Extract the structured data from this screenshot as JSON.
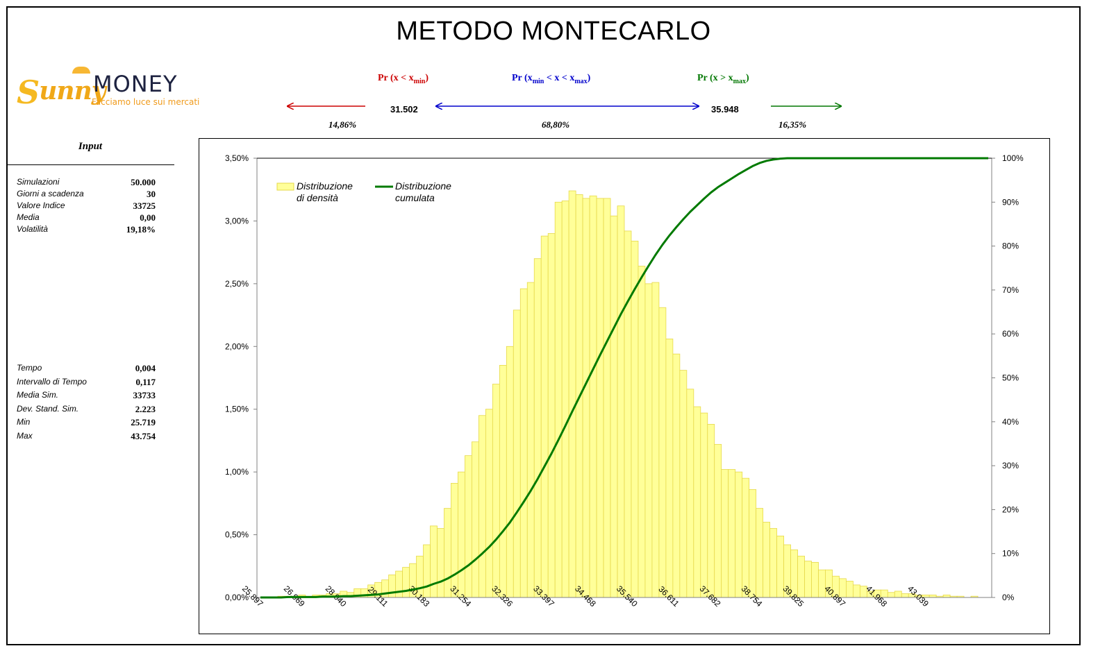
{
  "title": "METODO MONTECARLO",
  "logo": {
    "brand_word": "unny",
    "brand_initial": "S",
    "brand_name": "MONEY",
    "tagline": "Facciamo luce sui mercati"
  },
  "probabilities": {
    "left": {
      "label_prefix": "Pr (x < x",
      "label_sub": "min",
      "label_suffix": ")",
      "percent": "14,86%",
      "color": "#cc0000"
    },
    "middle": {
      "label_prefix": "Pr (x",
      "label_sub1": "min",
      "label_mid": " < x < x",
      "label_sub2": "max",
      "label_suffix": ")",
      "percent": "68,80%",
      "color": "#0000cc"
    },
    "right": {
      "label_prefix": "Pr (x > x",
      "label_sub": "max",
      "label_suffix": ")",
      "percent": "16,35%",
      "color": "#007700"
    },
    "xmin": "31.502",
    "xmax": "35.948"
  },
  "input": {
    "title": "Input",
    "params": [
      {
        "label": "Simulazioni",
        "value": "50.000"
      },
      {
        "label": "Giorni a scadenza",
        "value": "30"
      },
      {
        "label": "Valore Indice",
        "value": "33725"
      },
      {
        "label": "Media",
        "value": "0,00"
      },
      {
        "label": "Volatilità",
        "value": "19,18%"
      }
    ],
    "results": [
      {
        "label": "Tempo",
        "value": "0,004"
      },
      {
        "label": "Intervallo di Tempo",
        "value": "0,117"
      },
      {
        "label": "Media Sim.",
        "value": "33733"
      },
      {
        "label": "Dev. Stand. Sim.",
        "value": "2.223"
      },
      {
        "label": "Min",
        "value": "25.719"
      },
      {
        "label": "Max",
        "value": "43.754"
      }
    ]
  },
  "chart_data": {
    "type": "bar",
    "legend_position": "top-left",
    "grid": false,
    "ylim_left": [
      0,
      3.5
    ],
    "ylim_right": [
      0,
      100
    ],
    "y_left_ticks": [
      "0,00%",
      "0,50%",
      "1,00%",
      "1,50%",
      "2,00%",
      "2,50%",
      "3,00%",
      "3,50%"
    ],
    "y_right_ticks": [
      "0%",
      "10%",
      "20%",
      "30%",
      "40%",
      "50%",
      "60%",
      "70%",
      "80%",
      "90%",
      "100%"
    ],
    "x_tick_labels": [
      "25.897",
      "26.969",
      "28.040",
      "29.111",
      "30.183",
      "31.254",
      "32.326",
      "33.397",
      "34.468",
      "35.540",
      "36.611",
      "37.682",
      "38.754",
      "39.825",
      "40.897",
      "41.968",
      "43.039"
    ],
    "x_tick_every": 6,
    "bar_color": "#ffff99",
    "bar_edge": "#e6d84a",
    "line_color": "#007a00",
    "series": [
      {
        "name": "Distribuzione di densità",
        "values": [
          0.0,
          0.0,
          0.0,
          0.01,
          0.01,
          0.01,
          0.02,
          0.01,
          0.02,
          0.02,
          0.03,
          0.03,
          0.05,
          0.04,
          0.07,
          0.07,
          0.1,
          0.12,
          0.14,
          0.18,
          0.21,
          0.24,
          0.27,
          0.33,
          0.42,
          0.57,
          0.55,
          0.71,
          0.91,
          1.0,
          1.13,
          1.24,
          1.45,
          1.5,
          1.7,
          1.85,
          2.0,
          2.29,
          2.46,
          2.51,
          2.7,
          2.88,
          2.9,
          3.15,
          3.16,
          3.24,
          3.21,
          3.18,
          3.2,
          3.18,
          3.18,
          3.04,
          3.12,
          2.92,
          2.84,
          2.64,
          2.5,
          2.51,
          2.31,
          2.06,
          1.94,
          1.81,
          1.66,
          1.52,
          1.47,
          1.38,
          1.22,
          1.02,
          1.02,
          1.0,
          0.95,
          0.86,
          0.71,
          0.6,
          0.55,
          0.49,
          0.42,
          0.38,
          0.33,
          0.29,
          0.28,
          0.22,
          0.22,
          0.17,
          0.15,
          0.13,
          0.1,
          0.09,
          0.05,
          0.06,
          0.06,
          0.04,
          0.05,
          0.03,
          0.03,
          0.02,
          0.02,
          0.02,
          0.01,
          0.02,
          0.01,
          0.01,
          0.0,
          0.01,
          0.0,
          0.0
        ]
      },
      {
        "name": "Distribuzione cumulata",
        "values": [
          0.0,
          0.0,
          0.0,
          0.0,
          0.1,
          0.1,
          0.1,
          0.1,
          0.1,
          0.2,
          0.2,
          0.2,
          0.3,
          0.3,
          0.4,
          0.5,
          0.6,
          0.7,
          0.9,
          1.1,
          1.3,
          1.5,
          1.8,
          2.1,
          2.5,
          3.1,
          3.6,
          4.3,
          5.2,
          6.2,
          7.3,
          8.6,
          10.0,
          11.5,
          13.2,
          15.1,
          17.1,
          19.4,
          21.8,
          24.3,
          27.0,
          29.9,
          32.8,
          35.9,
          39.1,
          42.4,
          45.6,
          48.8,
          52.0,
          55.2,
          58.3,
          61.4,
          64.5,
          67.4,
          70.2,
          72.9,
          75.5,
          78.0,
          80.3,
          82.4,
          84.3,
          86.1,
          87.8,
          89.3,
          90.8,
          92.2,
          93.4,
          94.4,
          95.4,
          96.4,
          97.3,
          98.2,
          98.9,
          99.4,
          99.7,
          99.9,
          100.0,
          100.0,
          100.0,
          100.0,
          100.0,
          100.0,
          100.0,
          100.0,
          100.0,
          100.0,
          100.0,
          100.0,
          100.0,
          100.0,
          100.0,
          100.0,
          100.0,
          100.0,
          100.0,
          100.0,
          100.0,
          100.0,
          100.0,
          100.0,
          100.0,
          100.0,
          100.0,
          100.0,
          100.0,
          100.0
        ]
      }
    ],
    "legend": {
      "density_line1": "Distribuzione",
      "density_line2": "di densità",
      "cumulative_line1": "Distribuzione",
      "cumulative_line2": "cumulata"
    }
  }
}
